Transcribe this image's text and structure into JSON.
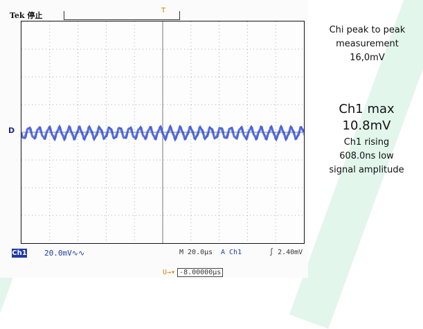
{
  "scope": {
    "brand": "Tek",
    "state": "停止",
    "trigger_top_label": "T",
    "trigger_marker": "U",
    "channel_marker": "D",
    "channel_label": "Ch1",
    "volts_per_div": "20.0mV∿∿",
    "timebase": "M 20.0µs",
    "trigger_source": "A  Ch1",
    "trigger_slope": "∫",
    "trigger_level": "2.40mV",
    "offset_icon": "U→▾",
    "offset_value": "-8.00000µs"
  },
  "annotations": {
    "line1": "Chi peak to peak",
    "line2": "measurement",
    "line3": "16,0mV",
    "max_label": "Ch1 max",
    "max_value": "10.8mV",
    "rising_label": "Ch1 rising",
    "rising_value": "608.0ns low",
    "signal": "signal amplitude"
  },
  "colors": {
    "trace": "#1f3fd0",
    "accent_orange": "#e07b00",
    "badge_blue": "#1e3aa8",
    "stripe_green": "#d8f3e4"
  }
}
